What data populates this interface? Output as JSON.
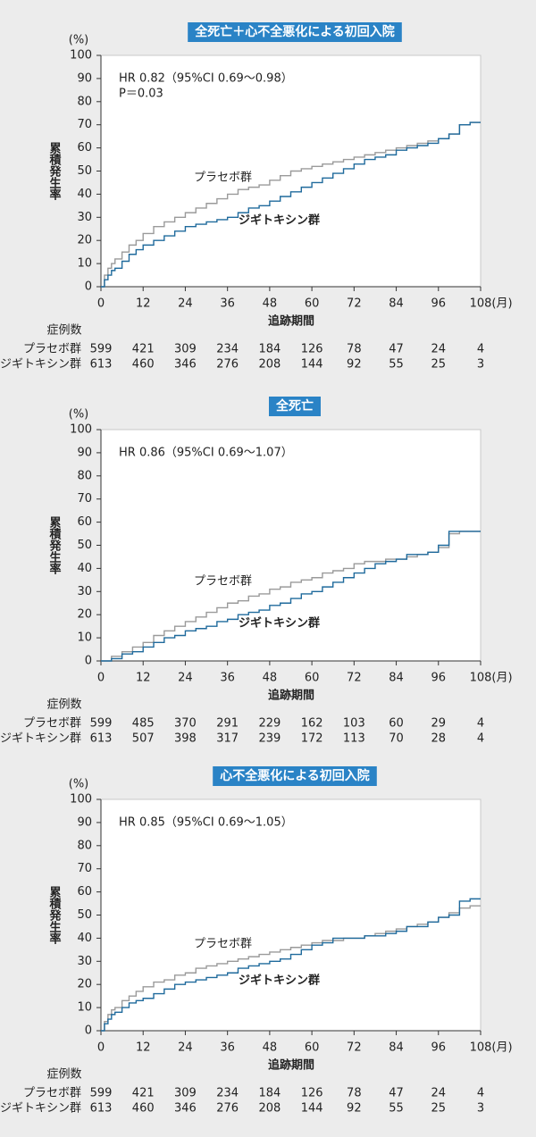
{
  "chart_data": [
    {
      "type": "line",
      "title": "全死亡＋心不全悪化による初回入院",
      "y_unit": "(%)",
      "ylabel": "累積発生率",
      "xlabel": "追跡期間",
      "x_unit": "(月)",
      "annotations": [
        "HR 0.82（95%CI 0.69～0.98）",
        "P＝0.03"
      ],
      "xlim": [
        0,
        108
      ],
      "xticks": [
        0,
        12,
        24,
        36,
        48,
        60,
        72,
        84,
        96,
        108
      ],
      "ylim": [
        0,
        100
      ],
      "yticks": [
        0,
        10,
        20,
        30,
        40,
        50,
        60,
        70,
        80,
        90,
        100
      ],
      "x": [
        0,
        1,
        2,
        3,
        4,
        6,
        8,
        10,
        12,
        15,
        18,
        21,
        24,
        27,
        30,
        33,
        36,
        39,
        42,
        45,
        48,
        51,
        54,
        57,
        60,
        63,
        66,
        69,
        72,
        75,
        78,
        81,
        84,
        87,
        90,
        93,
        96,
        99,
        102,
        105,
        108
      ],
      "series": [
        {
          "name": "プラセボ群",
          "color": "#9a9a9a",
          "values": [
            0,
            5,
            8,
            10,
            12,
            15,
            18,
            20,
            23,
            26,
            28,
            30,
            32,
            34,
            36,
            38,
            40,
            42,
            43,
            44,
            46,
            48,
            50,
            51,
            52,
            53,
            54,
            55,
            56,
            57,
            58,
            59,
            60,
            61,
            62,
            63,
            64,
            66,
            70,
            71,
            71
          ]
        },
        {
          "name": "ジギトキシン群",
          "color": "#1f6a9c",
          "values": [
            0,
            3,
            5,
            7,
            8,
            11,
            14,
            16,
            18,
            20,
            22,
            24,
            26,
            27,
            28,
            29,
            30,
            32,
            34,
            35,
            37,
            39,
            41,
            43,
            45,
            47,
            49,
            51,
            53,
            55,
            56,
            57,
            59,
            60,
            61,
            62,
            64,
            66,
            70,
            71,
            71
          ]
        }
      ],
      "risk_table": {
        "title": "症例数",
        "rows": [
          {
            "name": "プラセボ群",
            "values": [
              599,
              421,
              309,
              234,
              184,
              126,
              78,
              47,
              24,
              4
            ]
          },
          {
            "name": "ジギトキシン群",
            "values": [
              613,
              460,
              346,
              276,
              208,
              144,
              92,
              55,
              25,
              3
            ]
          }
        ]
      }
    },
    {
      "type": "line",
      "title": "全死亡",
      "y_unit": "(%)",
      "ylabel": "累積発生率",
      "xlabel": "追跡期間",
      "x_unit": "(月)",
      "annotations": [
        "HR 0.86（95%CI 0.69～1.07）"
      ],
      "xlim": [
        0,
        108
      ],
      "xticks": [
        0,
        12,
        24,
        36,
        48,
        60,
        72,
        84,
        96,
        108
      ],
      "ylim": [
        0,
        100
      ],
      "yticks": [
        0,
        10,
        20,
        30,
        40,
        50,
        60,
        70,
        80,
        90,
        100
      ],
      "x": [
        0,
        3,
        6,
        9,
        12,
        15,
        18,
        21,
        24,
        27,
        30,
        33,
        36,
        39,
        42,
        45,
        48,
        51,
        54,
        57,
        60,
        63,
        66,
        69,
        72,
        75,
        78,
        81,
        84,
        87,
        90,
        93,
        96,
        99,
        102,
        108
      ],
      "series": [
        {
          "name": "プラセボ群",
          "color": "#9a9a9a",
          "values": [
            0,
            2,
            4,
            6,
            8,
            11,
            13,
            15,
            17,
            19,
            21,
            23,
            25,
            26,
            28,
            29,
            31,
            32,
            34,
            35,
            36,
            38,
            39,
            40,
            42,
            43,
            43,
            44,
            44,
            45,
            46,
            47,
            49,
            55,
            56,
            56
          ]
        },
        {
          "name": "ジギトキシン群",
          "color": "#1f6a9c",
          "values": [
            0,
            1,
            3,
            4,
            6,
            8,
            10,
            11,
            13,
            14,
            15,
            17,
            18,
            20,
            21,
            22,
            24,
            25,
            27,
            29,
            30,
            32,
            34,
            36,
            38,
            40,
            42,
            43,
            44,
            46,
            46,
            47,
            50,
            56,
            56,
            56
          ]
        }
      ],
      "risk_table": {
        "title": "症例数",
        "rows": [
          {
            "name": "プラセボ群",
            "values": [
              599,
              485,
              370,
              291,
              229,
              162,
              103,
              60,
              29,
              4
            ]
          },
          {
            "name": "ジギトキシン群",
            "values": [
              613,
              507,
              398,
              317,
              239,
              172,
              113,
              70,
              28,
              4
            ]
          }
        ]
      }
    },
    {
      "type": "line",
      "title": "心不全悪化による初回入院",
      "y_unit": "(%)",
      "ylabel": "累積発生率",
      "xlabel": "追跡期間",
      "x_unit": "(月)",
      "annotations": [
        "HR 0.85（95%CI 0.69～1.05）"
      ],
      "xlim": [
        0,
        108
      ],
      "xticks": [
        0,
        12,
        24,
        36,
        48,
        60,
        72,
        84,
        96,
        108
      ],
      "ylim": [
        0,
        100
      ],
      "yticks": [
        0,
        10,
        20,
        30,
        40,
        50,
        60,
        70,
        80,
        90,
        100
      ],
      "x": [
        0,
        1,
        2,
        3,
        4,
        6,
        8,
        10,
        12,
        15,
        18,
        21,
        24,
        27,
        30,
        33,
        36,
        39,
        42,
        45,
        48,
        51,
        54,
        57,
        60,
        63,
        66,
        69,
        72,
        75,
        78,
        81,
        84,
        87,
        90,
        93,
        96,
        99,
        102,
        105,
        108
      ],
      "series": [
        {
          "name": "プラセボ群",
          "color": "#9a9a9a",
          "values": [
            0,
            4,
            7,
            9,
            10,
            13,
            15,
            17,
            19,
            21,
            22,
            24,
            25,
            27,
            28,
            29,
            30,
            31,
            32,
            33,
            34,
            35,
            36,
            37,
            38,
            39,
            39,
            40,
            40,
            41,
            42,
            43,
            44,
            45,
            46,
            47,
            49,
            51,
            53,
            54,
            54
          ]
        },
        {
          "name": "ジギトキシン群",
          "color": "#1f6a9c",
          "values": [
            0,
            3,
            5,
            7,
            8,
            10,
            12,
            13,
            14,
            16,
            18,
            20,
            21,
            22,
            23,
            24,
            25,
            27,
            28,
            29,
            30,
            31,
            33,
            35,
            37,
            38,
            40,
            40,
            40,
            41,
            41,
            42,
            43,
            45,
            45,
            47,
            49,
            50,
            56,
            57,
            57
          ]
        }
      ],
      "risk_table": {
        "title": "症例数",
        "rows": [
          {
            "name": "プラセボ群",
            "values": [
              599,
              421,
              309,
              234,
              184,
              126,
              78,
              47,
              24,
              4
            ]
          },
          {
            "name": "ジギトキシン群",
            "values": [
              613,
              460,
              346,
              276,
              208,
              144,
              92,
              55,
              25,
              3
            ]
          }
        ]
      }
    }
  ]
}
